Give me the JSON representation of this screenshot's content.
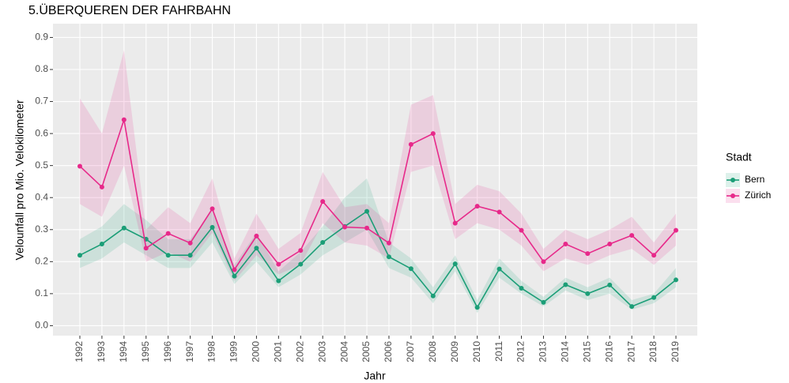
{
  "chart_data": {
    "type": "line",
    "title": "5.ÜBERQUEREN DER FAHRBAHN",
    "x_label": "Jahr",
    "y_label": "Velounfall pro Mio. Velokilometer",
    "legend_title": "Stadt",
    "legend": "right",
    "grid": true,
    "categories": [
      "1992",
      "1993",
      "1994",
      "1995",
      "1996",
      "1997",
      "1998",
      "1999",
      "2000",
      "2001",
      "2002",
      "2003",
      "2004",
      "2005",
      "2006",
      "2007",
      "2008",
      "2009",
      "2010",
      "2011",
      "2012",
      "2013",
      "2014",
      "2015",
      "2016",
      "2017",
      "2018",
      "2019"
    ],
    "ylim": [
      -0.031,
      0.943
    ],
    "yticks": [
      {
        "value": 0,
        "label": "0.0"
      },
      0.1,
      0.2,
      0.3,
      0.4,
      0.5,
      0.6,
      0.7,
      0.8,
      0.9
    ],
    "series": [
      {
        "name": "Bern",
        "color": "#1b9e77",
        "values": [
          0.22,
          0.255,
          0.305,
          0.27,
          0.22,
          0.22,
          0.307,
          0.155,
          0.242,
          0.14,
          0.192,
          0.26,
          0.31,
          0.357,
          0.215,
          0.178,
          0.093,
          0.193,
          0.057,
          0.177,
          0.117,
          0.073,
          0.128,
          0.1,
          0.127,
          0.06,
          0.088,
          0.143
        ],
        "upper": [
          0.27,
          0.31,
          0.38,
          0.33,
          0.27,
          0.27,
          0.36,
          0.19,
          0.29,
          0.17,
          0.23,
          0.31,
          0.4,
          0.46,
          0.26,
          0.21,
          0.12,
          0.22,
          0.08,
          0.21,
          0.14,
          0.09,
          0.15,
          0.12,
          0.15,
          0.08,
          0.1,
          0.18
        ],
        "lower": [
          0.18,
          0.21,
          0.26,
          0.22,
          0.18,
          0.18,
          0.26,
          0.13,
          0.2,
          0.12,
          0.16,
          0.22,
          0.26,
          0.3,
          0.18,
          0.15,
          0.07,
          0.17,
          0.04,
          0.15,
          0.1,
          0.06,
          0.11,
          0.08,
          0.1,
          0.05,
          0.07,
          0.12
        ]
      },
      {
        "name": "Zürich",
        "color": "#e7298a",
        "values": [
          0.498,
          0.433,
          0.643,
          0.242,
          0.288,
          0.258,
          0.365,
          0.175,
          0.28,
          0.192,
          0.235,
          0.388,
          0.308,
          0.305,
          0.258,
          0.566,
          0.6,
          0.32,
          0.373,
          0.355,
          0.298,
          0.2,
          0.255,
          0.225,
          0.255,
          0.282,
          0.22,
          0.298
        ],
        "upper": [
          0.71,
          0.6,
          0.86,
          0.3,
          0.37,
          0.32,
          0.46,
          0.21,
          0.35,
          0.24,
          0.29,
          0.48,
          0.37,
          0.38,
          0.32,
          0.69,
          0.72,
          0.38,
          0.44,
          0.42,
          0.35,
          0.24,
          0.3,
          0.27,
          0.3,
          0.34,
          0.26,
          0.35
        ],
        "lower": [
          0.38,
          0.34,
          0.5,
          0.2,
          0.23,
          0.2,
          0.29,
          0.14,
          0.22,
          0.16,
          0.19,
          0.32,
          0.26,
          0.25,
          0.21,
          0.48,
          0.5,
          0.27,
          0.32,
          0.3,
          0.25,
          0.17,
          0.21,
          0.19,
          0.22,
          0.24,
          0.19,
          0.25
        ]
      }
    ]
  }
}
